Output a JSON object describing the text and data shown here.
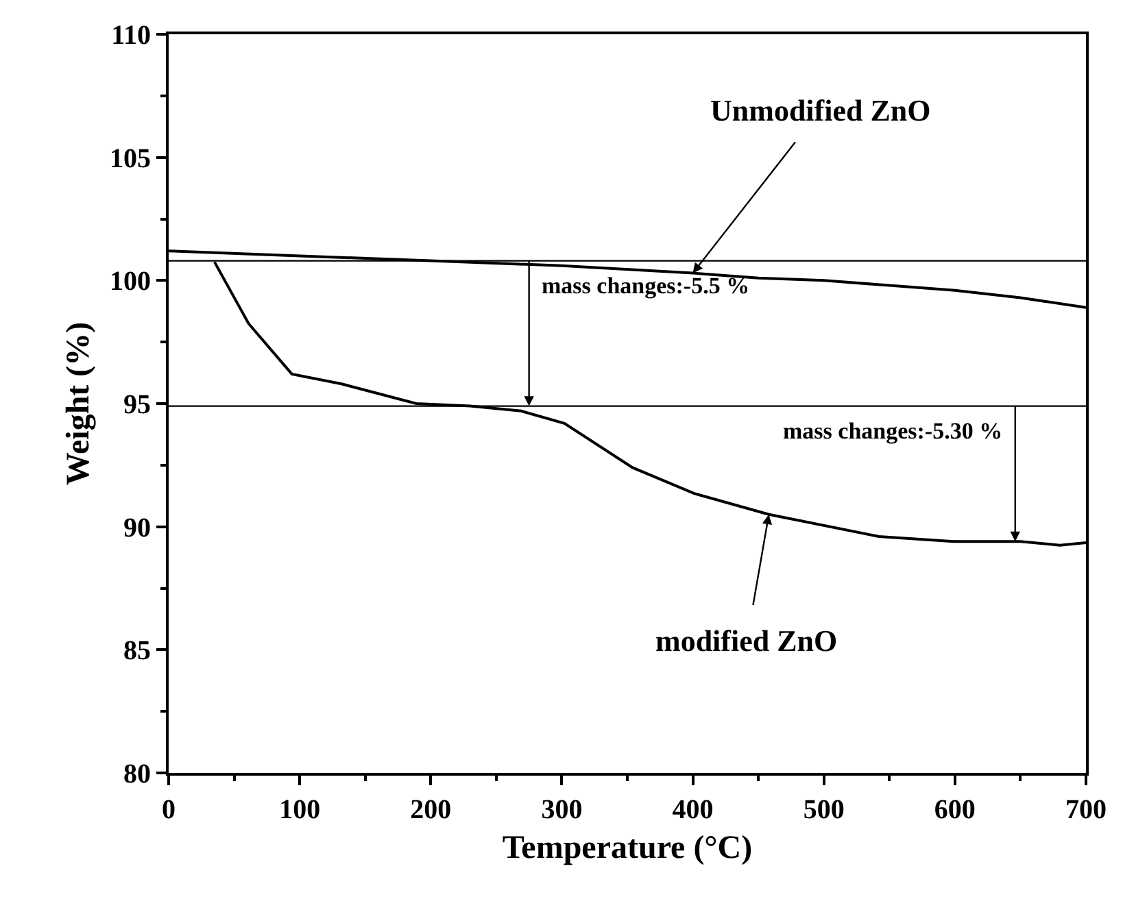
{
  "chart_data": {
    "type": "line",
    "xlabel": "Temperature (°C)",
    "ylabel": "Weight (%)",
    "xlim": [
      0,
      700
    ],
    "xticks": [
      0,
      100,
      200,
      300,
      400,
      500,
      600,
      700
    ],
    "ylim": [
      80,
      110
    ],
    "yticks": [
      80,
      85,
      90,
      95,
      100,
      105,
      110
    ],
    "legend": false,
    "marker": "none",
    "line_style": "solid",
    "series": [
      {
        "name": "Unmodified ZnO",
        "color": "#000000",
        "x": [
          0,
          100,
          200,
          300,
          400,
          450,
          500,
          550,
          600,
          650,
          700
        ],
        "values": [
          101.2,
          101.0,
          100.8,
          100.6,
          100.3,
          100.1,
          100.0,
          99.8,
          99.6,
          99.3,
          98.9
        ]
      },
      {
        "name": "modified ZnO",
        "color": "#000000",
        "x": [
          35,
          61,
          94,
          132,
          189,
          230,
          269,
          302,
          354,
          401,
          458,
          542,
          599,
          650,
          680,
          700
        ],
        "values": [
          100.75,
          98.25,
          96.2,
          95.8,
          95.0,
          94.9,
          94.7,
          94.2,
          92.4,
          91.35,
          90.5,
          89.6,
          89.4,
          89.4,
          89.25,
          89.35
        ]
      }
    ],
    "ref_lines": [
      {
        "axis": "y",
        "value": 100.8,
        "color": "#000000"
      },
      {
        "axis": "y",
        "value": 94.9,
        "color": "#000000"
      }
    ],
    "annotations": [
      {
        "text": "mass changes:-5.5 %",
        "x": 275,
        "y": 94.9
      },
      {
        "text": "mass changes:-5.30 %",
        "x": 646,
        "y": 89.4
      }
    ]
  }
}
